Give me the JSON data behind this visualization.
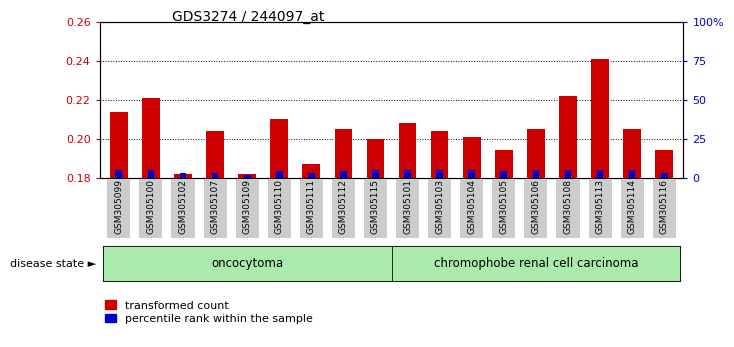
{
  "title": "GDS3274 / 244097_at",
  "samples": [
    "GSM305099",
    "GSM305100",
    "GSM305102",
    "GSM305107",
    "GSM305109",
    "GSM305110",
    "GSM305111",
    "GSM305112",
    "GSM305115",
    "GSM305101",
    "GSM305103",
    "GSM305104",
    "GSM305105",
    "GSM305106",
    "GSM305108",
    "GSM305113",
    "GSM305114",
    "GSM305116"
  ],
  "transformed_count": [
    0.214,
    0.221,
    0.182,
    0.204,
    0.182,
    0.21,
    0.187,
    0.205,
    0.2,
    0.208,
    0.204,
    0.201,
    0.194,
    0.205,
    0.222,
    0.241,
    0.205,
    0.194
  ],
  "percentile_rank": [
    5,
    5,
    3,
    3,
    2,
    4,
    3,
    4,
    5,
    5,
    5,
    5,
    4,
    5,
    5,
    5,
    5,
    3
  ],
  "baseline": 0.18,
  "ylim_left": [
    0.18,
    0.26
  ],
  "ylim_right": [
    0,
    100
  ],
  "yticks_left": [
    0.18,
    0.2,
    0.22,
    0.24,
    0.26
  ],
  "yticks_right": [
    0,
    25,
    50,
    75,
    100
  ],
  "ytick_labels_right": [
    "0",
    "25",
    "50",
    "75",
    "100%"
  ],
  "bar_color_red": "#cc0000",
  "bar_color_blue": "#0000cc",
  "oncocytoma_count": 9,
  "chromophobe_count": 9,
  "group1_label": "oncocytoma",
  "group2_label": "chromophobe renal cell carcinoma",
  "disease_state_label": "disease state",
  "legend1": "transformed count",
  "legend2": "percentile rank within the sample",
  "bg_color": "#ffffff",
  "plot_bg": "#ffffff",
  "group_bg_color": "#aaeaaa",
  "tick_bg_color": "#cccccc",
  "grid_color": "#000000",
  "title_fontsize": 10,
  "tick_fontsize": 7,
  "bar_width": 0.55
}
